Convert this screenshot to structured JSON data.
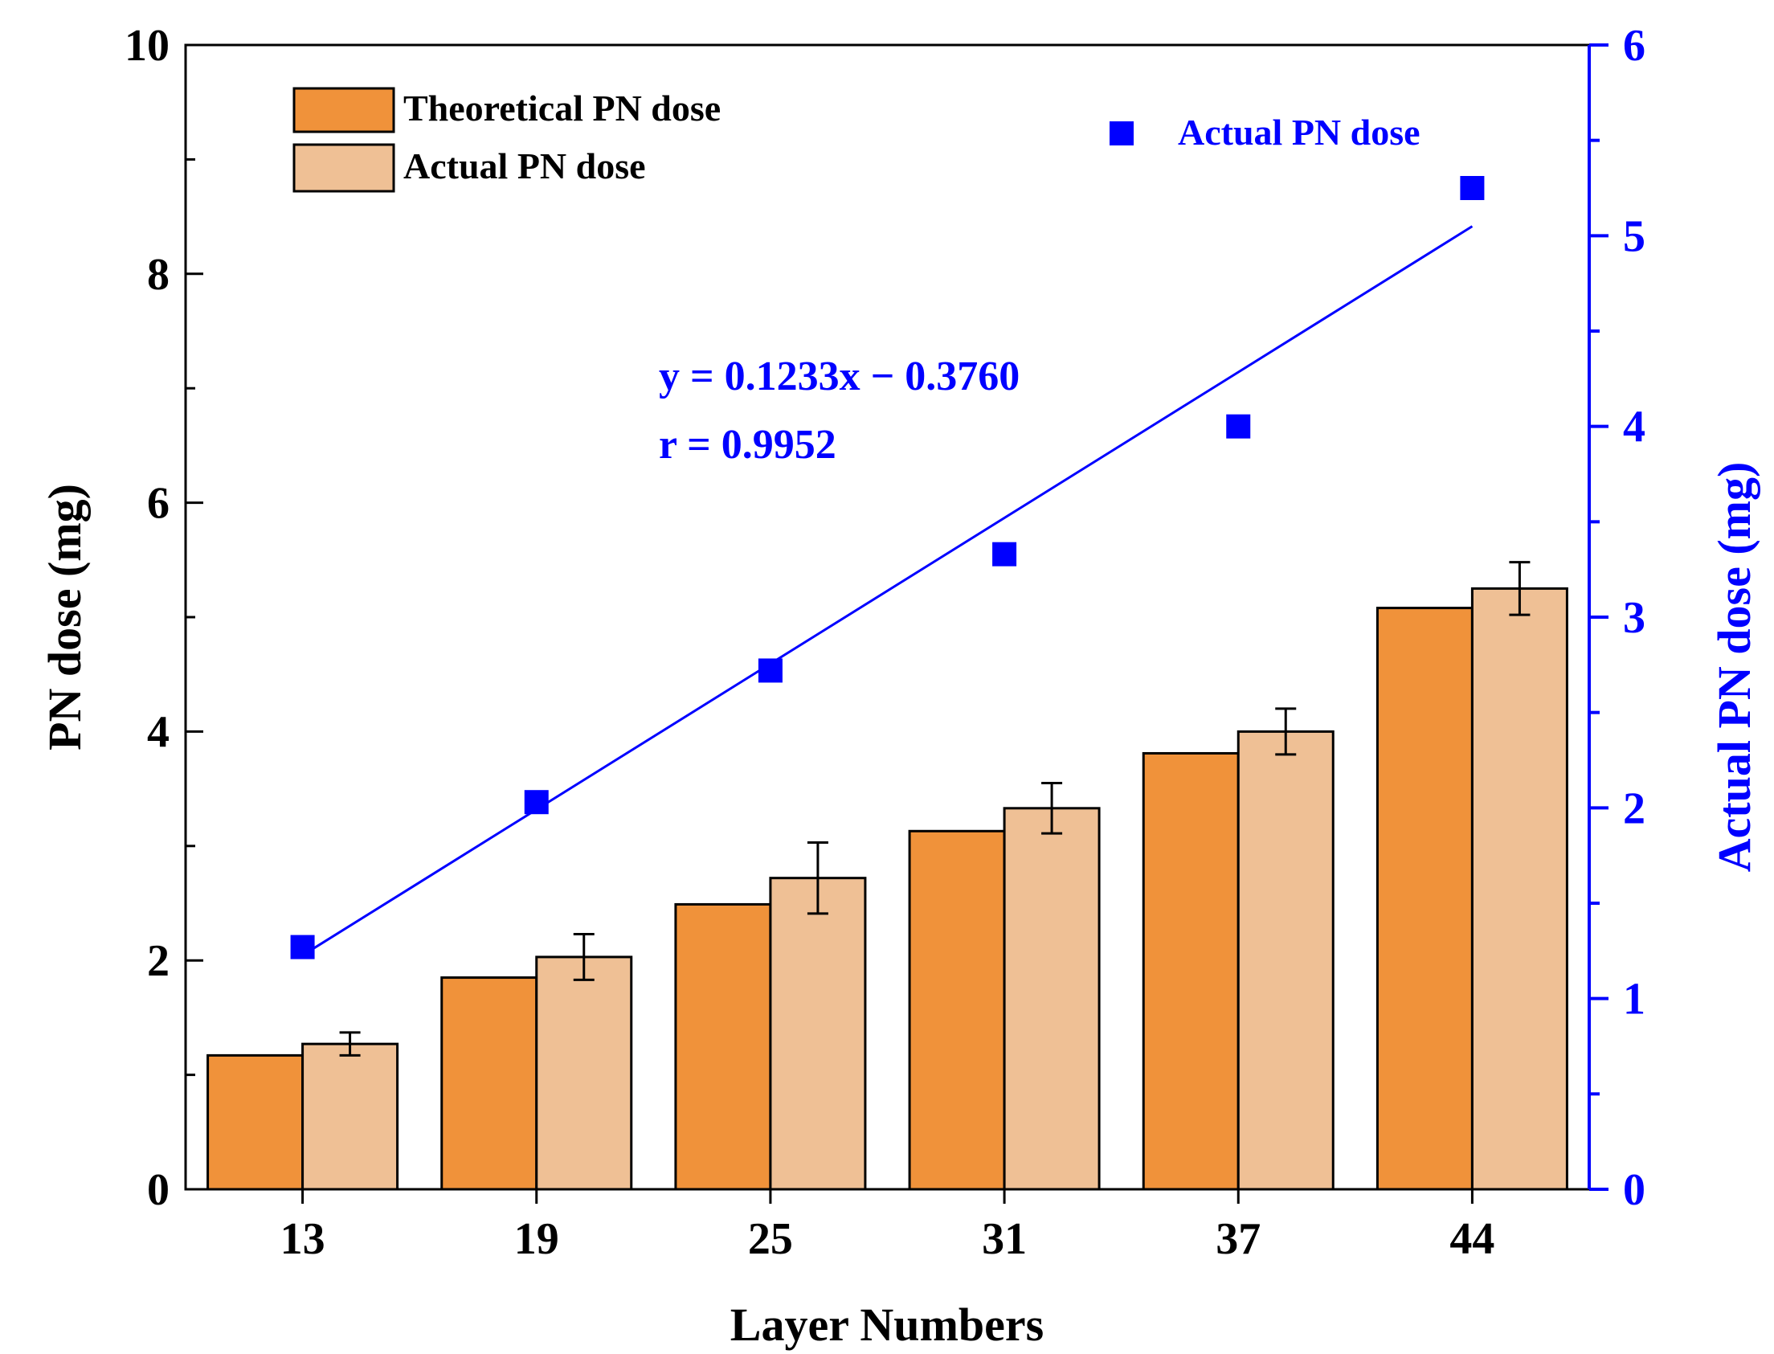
{
  "chart_data": {
    "type": "bar",
    "categories": [
      "13",
      "19",
      "25",
      "31",
      "37",
      "44"
    ],
    "xlabel": "Layer Numbers",
    "ylabel": "PN dose (mg)",
    "ylim": [
      0,
      10
    ],
    "yticks": [
      "0",
      "2",
      "4",
      "6",
      "8",
      "10"
    ],
    "y2label": "Actual PN dose (mg)",
    "y2lim": [
      0,
      6
    ],
    "y2ticks": [
      "0",
      "1",
      "2",
      "3",
      "4",
      "5",
      "6"
    ],
    "series": [
      {
        "name": "Theoretical PN dose",
        "axis": "left",
        "kind": "bar",
        "color": "#F0923A",
        "values": [
          1.17,
          1.85,
          2.49,
          3.13,
          3.81,
          5.08
        ]
      },
      {
        "name": "Actual PN dose",
        "axis": "left",
        "kind": "bar",
        "color": "#EFC095",
        "values": [
          1.27,
          2.03,
          2.72,
          3.33,
          4.0,
          5.25
        ],
        "errors": [
          0.1,
          0.2,
          0.31,
          0.22,
          0.2,
          0.23
        ]
      },
      {
        "name": "Actual PN dose",
        "axis": "right",
        "kind": "scatter",
        "color": "#0000FF",
        "values": [
          1.27,
          2.03,
          2.72,
          3.33,
          4.0,
          5.25
        ]
      }
    ],
    "fit": {
      "slope": 0.1233,
      "intercept": -0.376,
      "color": "#0000FF",
      "equation": "y = 0.1233x − 0.3760",
      "r_text": "r = 0.9952"
    },
    "legend_position": "top-left",
    "scatter_legend_position": "top-right",
    "grid": false
  }
}
